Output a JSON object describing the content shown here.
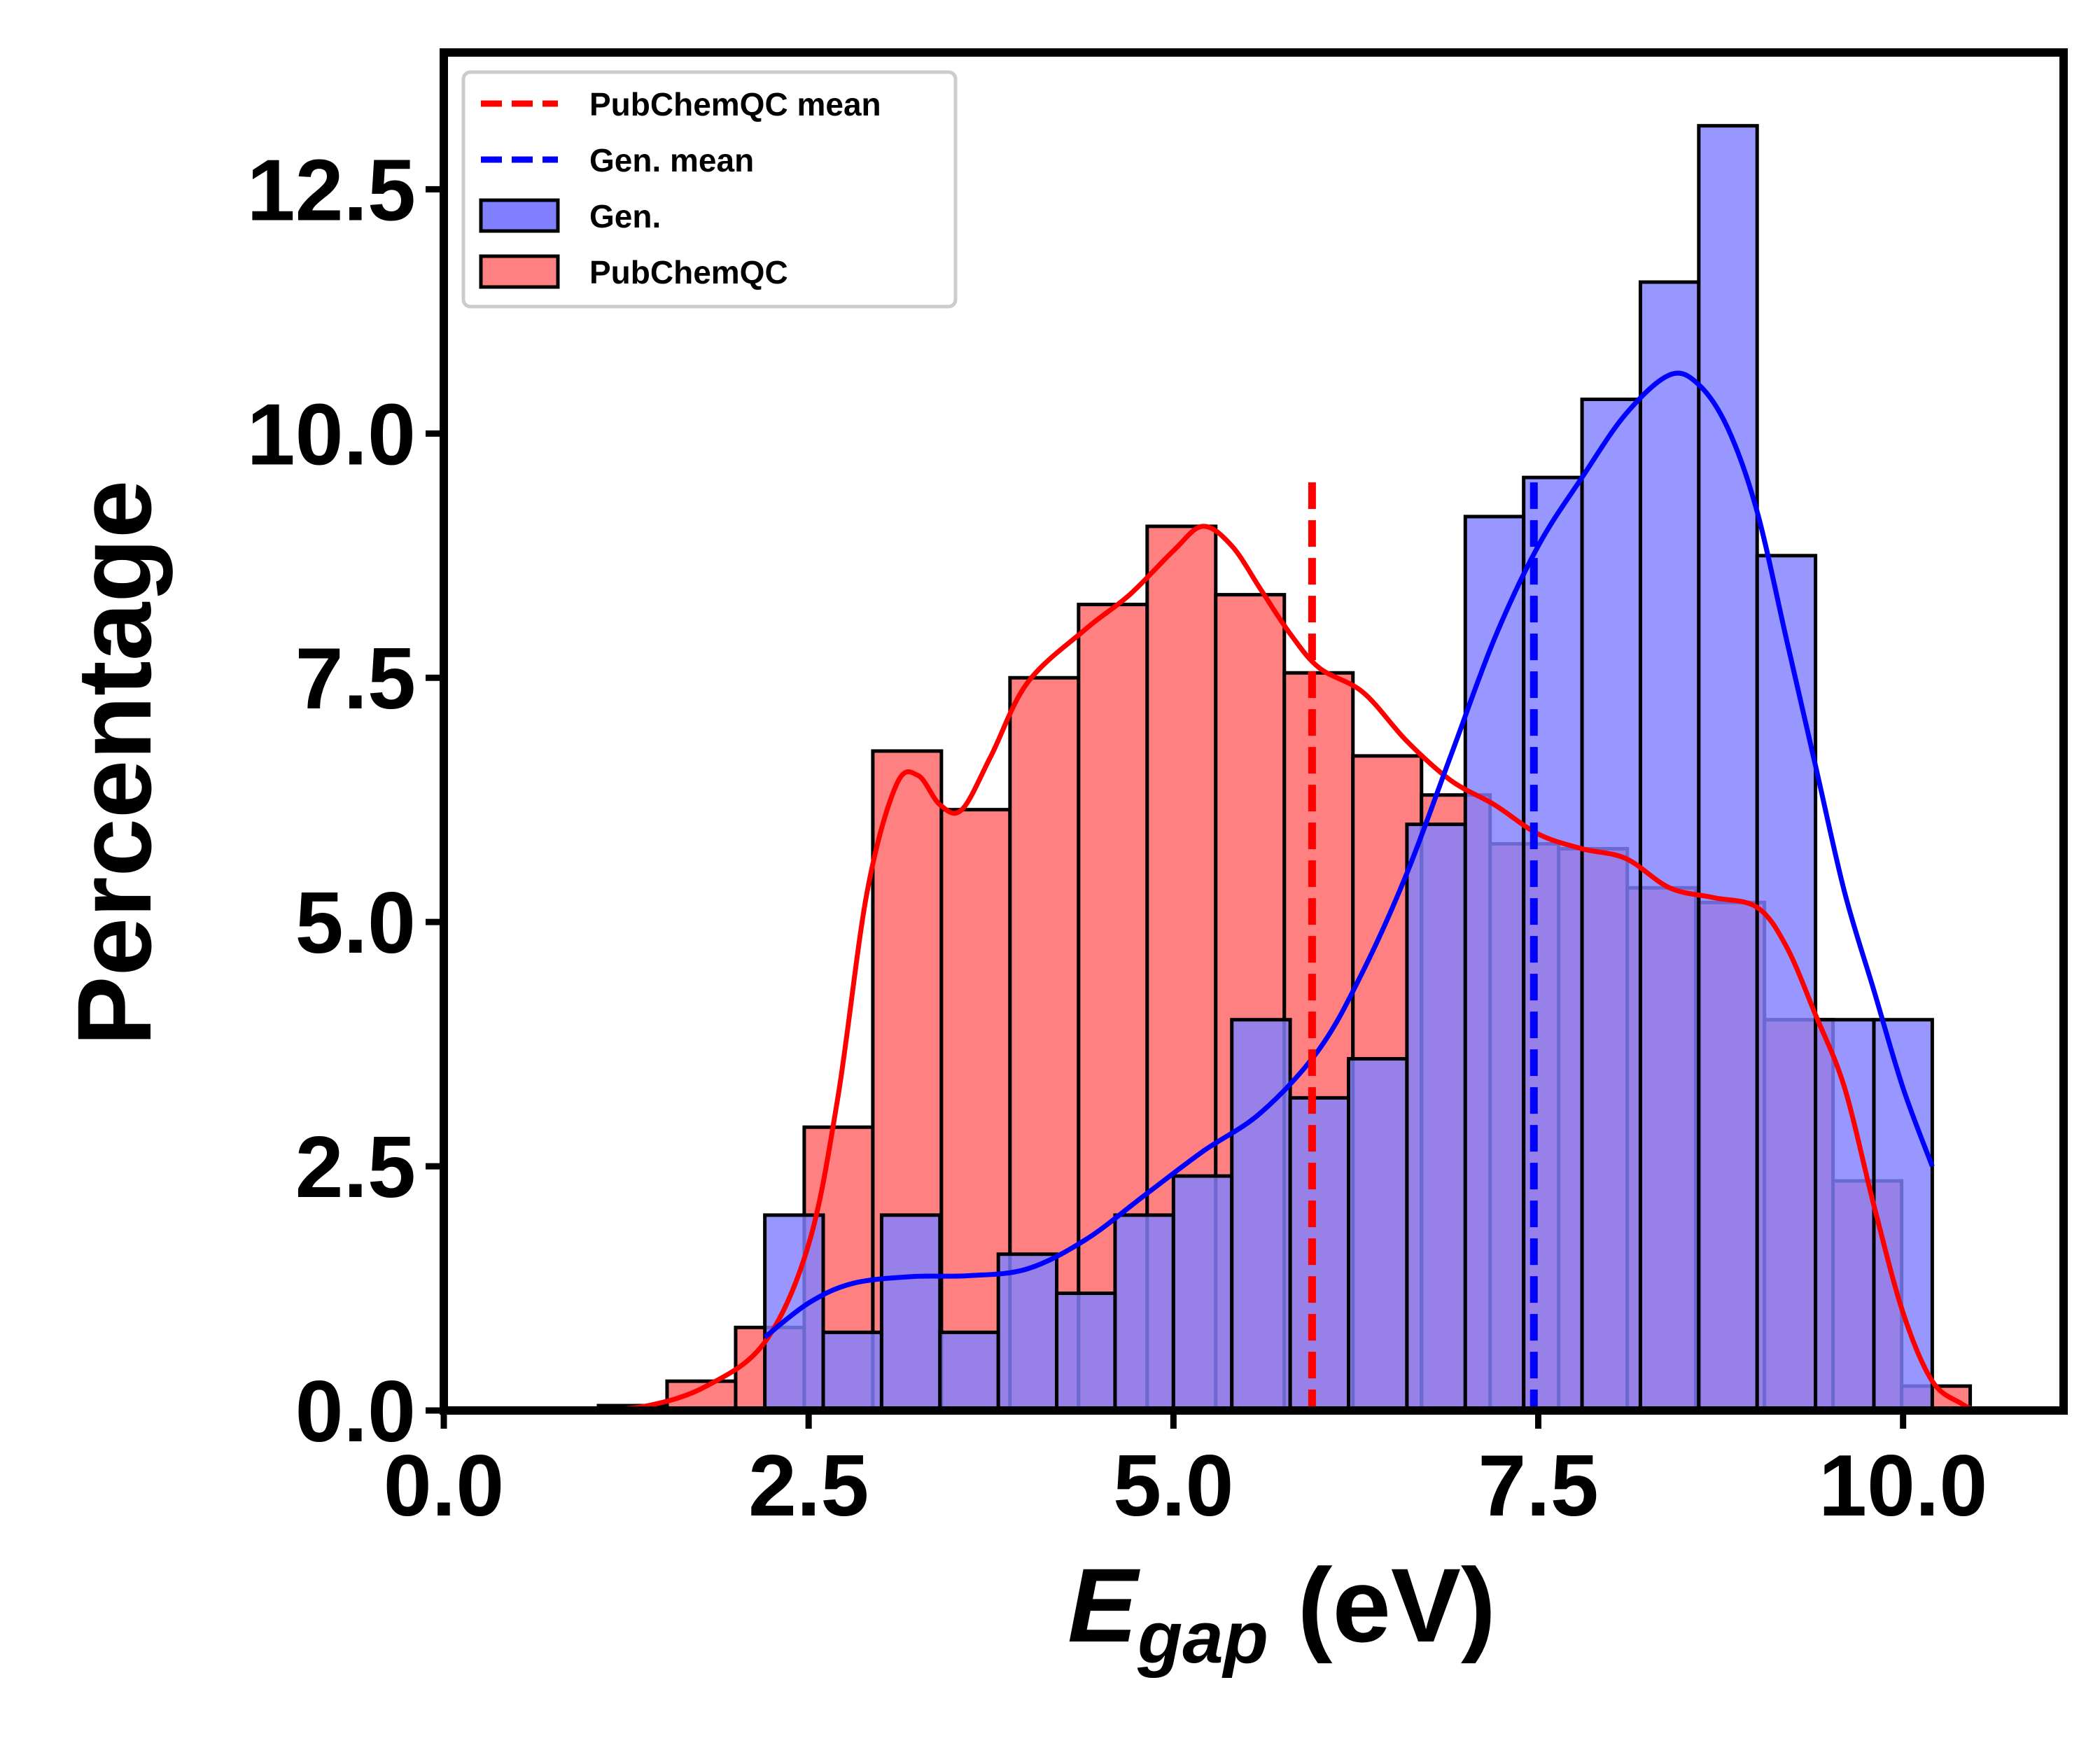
{
  "chart_data": {
    "type": "bar",
    "title": "",
    "xlabel": {
      "main": "E",
      "subscript": "gap",
      "unit": " (eV)"
    },
    "ylabel": "Percentage",
    "xlim": [
      0,
      11.1
    ],
    "ylim": [
      0,
      13.9
    ],
    "xticks": [
      0.0,
      2.5,
      5.0,
      7.5,
      10.0
    ],
    "xtick_labels": [
      "0.0",
      "2.5",
      "5.0",
      "7.5",
      "10.0"
    ],
    "yticks": [
      0.0,
      2.5,
      5.0,
      7.5,
      10.0,
      12.5
    ],
    "ytick_labels": [
      "0.0",
      "2.5",
      "5.0",
      "7.5",
      "10.0",
      "12.5"
    ],
    "grid": false,
    "legend_position": "top-left",
    "legend": [
      {
        "label": "PubChemQC mean",
        "kind": "dashed-line",
        "color": "#ff0000"
      },
      {
        "label": "Gen. mean",
        "kind": "dashed-line",
        "color": "#0000ff"
      },
      {
        "label": "Gen.",
        "kind": "patch",
        "color": "#8080ff"
      },
      {
        "label": "PubChemQC",
        "kind": "patch",
        "color": "#ff8080"
      }
    ],
    "series": [
      {
        "name": "PubChemQC",
        "kind": "histogram",
        "color": "#ff8080",
        "bins": [
          {
            "x0": 1.06,
            "x1": 1.53,
            "value": 0.05
          },
          {
            "x0": 1.53,
            "x1": 2.0,
            "value": 0.3
          },
          {
            "x0": 2.0,
            "x1": 2.47,
            "value": 0.85
          },
          {
            "x0": 2.47,
            "x1": 2.94,
            "value": 2.9
          },
          {
            "x0": 2.94,
            "x1": 3.41,
            "value": 6.75
          },
          {
            "x0": 3.41,
            "x1": 3.88,
            "value": 6.15
          },
          {
            "x0": 3.88,
            "x1": 4.35,
            "value": 7.5
          },
          {
            "x0": 4.35,
            "x1": 4.82,
            "value": 8.25
          },
          {
            "x0": 4.82,
            "x1": 5.29,
            "value": 9.05
          },
          {
            "x0": 5.29,
            "x1": 5.76,
            "value": 8.35
          },
          {
            "x0": 5.76,
            "x1": 6.23,
            "value": 7.55
          },
          {
            "x0": 6.23,
            "x1": 6.7,
            "value": 6.7
          },
          {
            "x0": 6.7,
            "x1": 7.17,
            "value": 6.3
          },
          {
            "x0": 7.17,
            "x1": 7.64,
            "value": 5.8
          },
          {
            "x0": 7.64,
            "x1": 8.11,
            "value": 5.75
          },
          {
            "x0": 8.11,
            "x1": 8.58,
            "value": 5.35
          },
          {
            "x0": 8.58,
            "x1": 9.05,
            "value": 5.2
          },
          {
            "x0": 9.05,
            "x1": 9.52,
            "value": 4.0
          },
          {
            "x0": 9.52,
            "x1": 9.99,
            "value": 2.35
          },
          {
            "x0": 9.99,
            "x1": 10.46,
            "value": 0.25
          }
        ],
        "kde": [
          [
            1.0,
            0.0
          ],
          [
            1.4,
            0.05
          ],
          [
            1.8,
            0.25
          ],
          [
            2.2,
            0.7
          ],
          [
            2.5,
            1.7
          ],
          [
            2.7,
            3.2
          ],
          [
            2.9,
            5.3
          ],
          [
            3.1,
            6.4
          ],
          [
            3.25,
            6.5
          ],
          [
            3.4,
            6.2
          ],
          [
            3.55,
            6.15
          ],
          [
            3.75,
            6.7
          ],
          [
            4.0,
            7.45
          ],
          [
            4.4,
            8.0
          ],
          [
            4.7,
            8.35
          ],
          [
            5.0,
            8.8
          ],
          [
            5.2,
            9.05
          ],
          [
            5.4,
            8.85
          ],
          [
            5.6,
            8.4
          ],
          [
            5.8,
            7.95
          ],
          [
            6.0,
            7.6
          ],
          [
            6.3,
            7.35
          ],
          [
            6.6,
            6.85
          ],
          [
            6.9,
            6.45
          ],
          [
            7.2,
            6.2
          ],
          [
            7.5,
            5.9
          ],
          [
            7.8,
            5.75
          ],
          [
            8.1,
            5.65
          ],
          [
            8.4,
            5.35
          ],
          [
            8.7,
            5.25
          ],
          [
            9.0,
            5.15
          ],
          [
            9.2,
            4.75
          ],
          [
            9.4,
            4.05
          ],
          [
            9.6,
            3.3
          ],
          [
            9.8,
            2.1
          ],
          [
            10.0,
            1.0
          ],
          [
            10.2,
            0.3
          ],
          [
            10.4,
            0.07
          ],
          [
            10.5,
            0.0
          ]
        ]
      },
      {
        "name": "Gen.",
        "kind": "histogram",
        "color": "#8080ff",
        "bins": [
          {
            "x0": 2.2,
            "x1": 2.6,
            "value": 2.0
          },
          {
            "x0": 2.6,
            "x1": 3.0,
            "value": 0.8
          },
          {
            "x0": 3.0,
            "x1": 3.4,
            "value": 2.0
          },
          {
            "x0": 3.4,
            "x1": 3.8,
            "value": 0.8
          },
          {
            "x0": 3.8,
            "x1": 4.2,
            "value": 1.6
          },
          {
            "x0": 4.2,
            "x1": 4.6,
            "value": 1.2
          },
          {
            "x0": 4.6,
            "x1": 5.0,
            "value": 2.0
          },
          {
            "x0": 5.0,
            "x1": 5.4,
            "value": 2.4
          },
          {
            "x0": 5.4,
            "x1": 5.8,
            "value": 4.0
          },
          {
            "x0": 5.8,
            "x1": 6.2,
            "value": 3.2
          },
          {
            "x0": 6.2,
            "x1": 6.6,
            "value": 3.6
          },
          {
            "x0": 6.6,
            "x1": 7.0,
            "value": 6.0
          },
          {
            "x0": 7.0,
            "x1": 7.4,
            "value": 9.15
          },
          {
            "x0": 7.4,
            "x1": 7.8,
            "value": 9.55
          },
          {
            "x0": 7.8,
            "x1": 8.2,
            "value": 10.35
          },
          {
            "x0": 8.2,
            "x1": 8.6,
            "value": 11.55
          },
          {
            "x0": 8.6,
            "x1": 9.0,
            "value": 13.15
          },
          {
            "x0": 9.0,
            "x1": 9.4,
            "value": 8.75
          },
          {
            "x0": 9.4,
            "x1": 9.8,
            "value": 4.0
          },
          {
            "x0": 9.8,
            "x1": 10.2,
            "value": 4.0
          }
        ],
        "kde": [
          [
            2.2,
            0.75
          ],
          [
            2.5,
            1.1
          ],
          [
            2.8,
            1.3
          ],
          [
            3.2,
            1.37
          ],
          [
            3.6,
            1.38
          ],
          [
            4.0,
            1.45
          ],
          [
            4.4,
            1.75
          ],
          [
            4.8,
            2.2
          ],
          [
            5.2,
            2.65
          ],
          [
            5.6,
            3.05
          ],
          [
            6.0,
            3.7
          ],
          [
            6.3,
            4.5
          ],
          [
            6.6,
            5.5
          ],
          [
            6.9,
            6.7
          ],
          [
            7.2,
            7.9
          ],
          [
            7.5,
            8.85
          ],
          [
            7.8,
            9.55
          ],
          [
            8.1,
            10.2
          ],
          [
            8.4,
            10.6
          ],
          [
            8.6,
            10.5
          ],
          [
            8.8,
            10.05
          ],
          [
            9.0,
            9.2
          ],
          [
            9.2,
            7.9
          ],
          [
            9.4,
            6.6
          ],
          [
            9.6,
            5.3
          ],
          [
            9.8,
            4.3
          ],
          [
            10.0,
            3.3
          ],
          [
            10.2,
            2.5
          ]
        ]
      }
    ],
    "mean_lines": [
      {
        "name": "PubChemQC mean",
        "x": 5.95,
        "y_top": 9.5,
        "color": "#ff0000"
      },
      {
        "name": "Gen. mean",
        "x": 7.47,
        "y_top": 9.5,
        "color": "#0000ff"
      }
    ]
  }
}
